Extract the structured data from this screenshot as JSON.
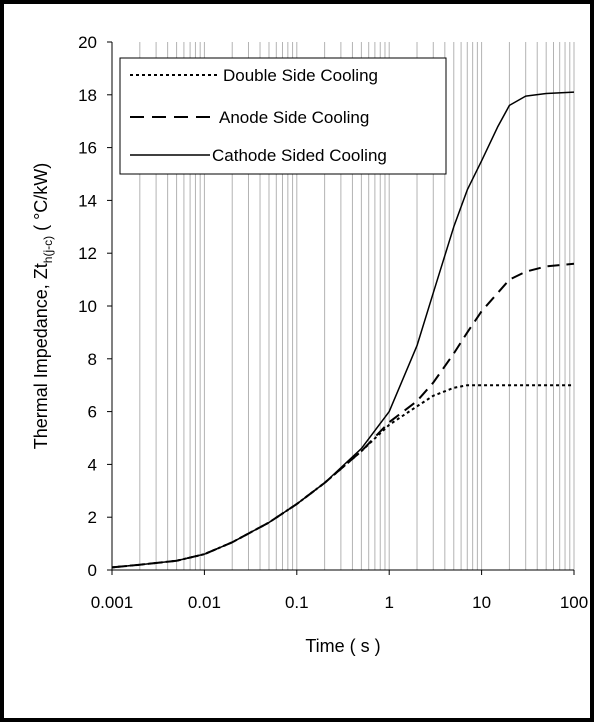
{
  "chart_data": {
    "type": "line",
    "ylabel_main": "Thermal Impedance, Zt",
    "ylabel_sub": "h(j-c)",
    "ylabel_unit": " ( °C/kW)",
    "xlabel": "Time ( s )",
    "x_scale": "log",
    "xlim": [
      0.001,
      100
    ],
    "ylim": [
      0,
      20
    ],
    "x_ticks": [
      0.001,
      0.01,
      0.1,
      1,
      10,
      100
    ],
    "x_tick_labels": [
      "0.001",
      "0.01",
      "0.1",
      "1",
      "10",
      "100"
    ],
    "y_ticks": [
      0,
      2,
      4,
      6,
      8,
      10,
      12,
      14,
      16,
      18,
      20
    ],
    "y_tick_labels": [
      "0",
      "2",
      "4",
      "6",
      "8",
      "10",
      "12",
      "14",
      "16",
      "18",
      "20"
    ],
    "grid": "vertical major and minor (log decades)",
    "legend_position": "top-left",
    "series": [
      {
        "name": "Double Side Cooling",
        "style": "dotted",
        "color": "#000000",
        "x": [
          0.001,
          0.002,
          0.005,
          0.01,
          0.02,
          0.05,
          0.1,
          0.2,
          0.5,
          1,
          2,
          3,
          5,
          7,
          10,
          20,
          50,
          100
        ],
        "y": [
          0.1,
          0.2,
          0.35,
          0.6,
          1.05,
          1.8,
          2.5,
          3.3,
          4.5,
          5.5,
          6.2,
          6.6,
          6.9,
          7.0,
          7.0,
          7.0,
          7.0,
          7.0
        ]
      },
      {
        "name": "Anode Side Cooling",
        "style": "dashed",
        "color": "#000000",
        "x": [
          0.001,
          0.002,
          0.005,
          0.01,
          0.02,
          0.05,
          0.1,
          0.2,
          0.5,
          1,
          2,
          3,
          5,
          7,
          10,
          15,
          20,
          30,
          50,
          100
        ],
        "y": [
          0.1,
          0.2,
          0.35,
          0.6,
          1.05,
          1.8,
          2.5,
          3.3,
          4.5,
          5.6,
          6.4,
          7.1,
          8.2,
          9.0,
          9.8,
          10.5,
          11.0,
          11.3,
          11.5,
          11.6
        ]
      },
      {
        "name": "Cathode Sided Cooling",
        "style": "solid",
        "color": "#000000",
        "x": [
          0.001,
          0.002,
          0.005,
          0.01,
          0.02,
          0.05,
          0.1,
          0.2,
          0.5,
          1,
          2,
          3,
          5,
          7,
          10,
          15,
          20,
          30,
          50,
          100
        ],
        "y": [
          0.1,
          0.2,
          0.35,
          0.6,
          1.05,
          1.8,
          2.5,
          3.3,
          4.6,
          6.0,
          8.5,
          10.5,
          13.0,
          14.4,
          15.5,
          16.8,
          17.6,
          17.95,
          18.05,
          18.1
        ]
      }
    ]
  }
}
